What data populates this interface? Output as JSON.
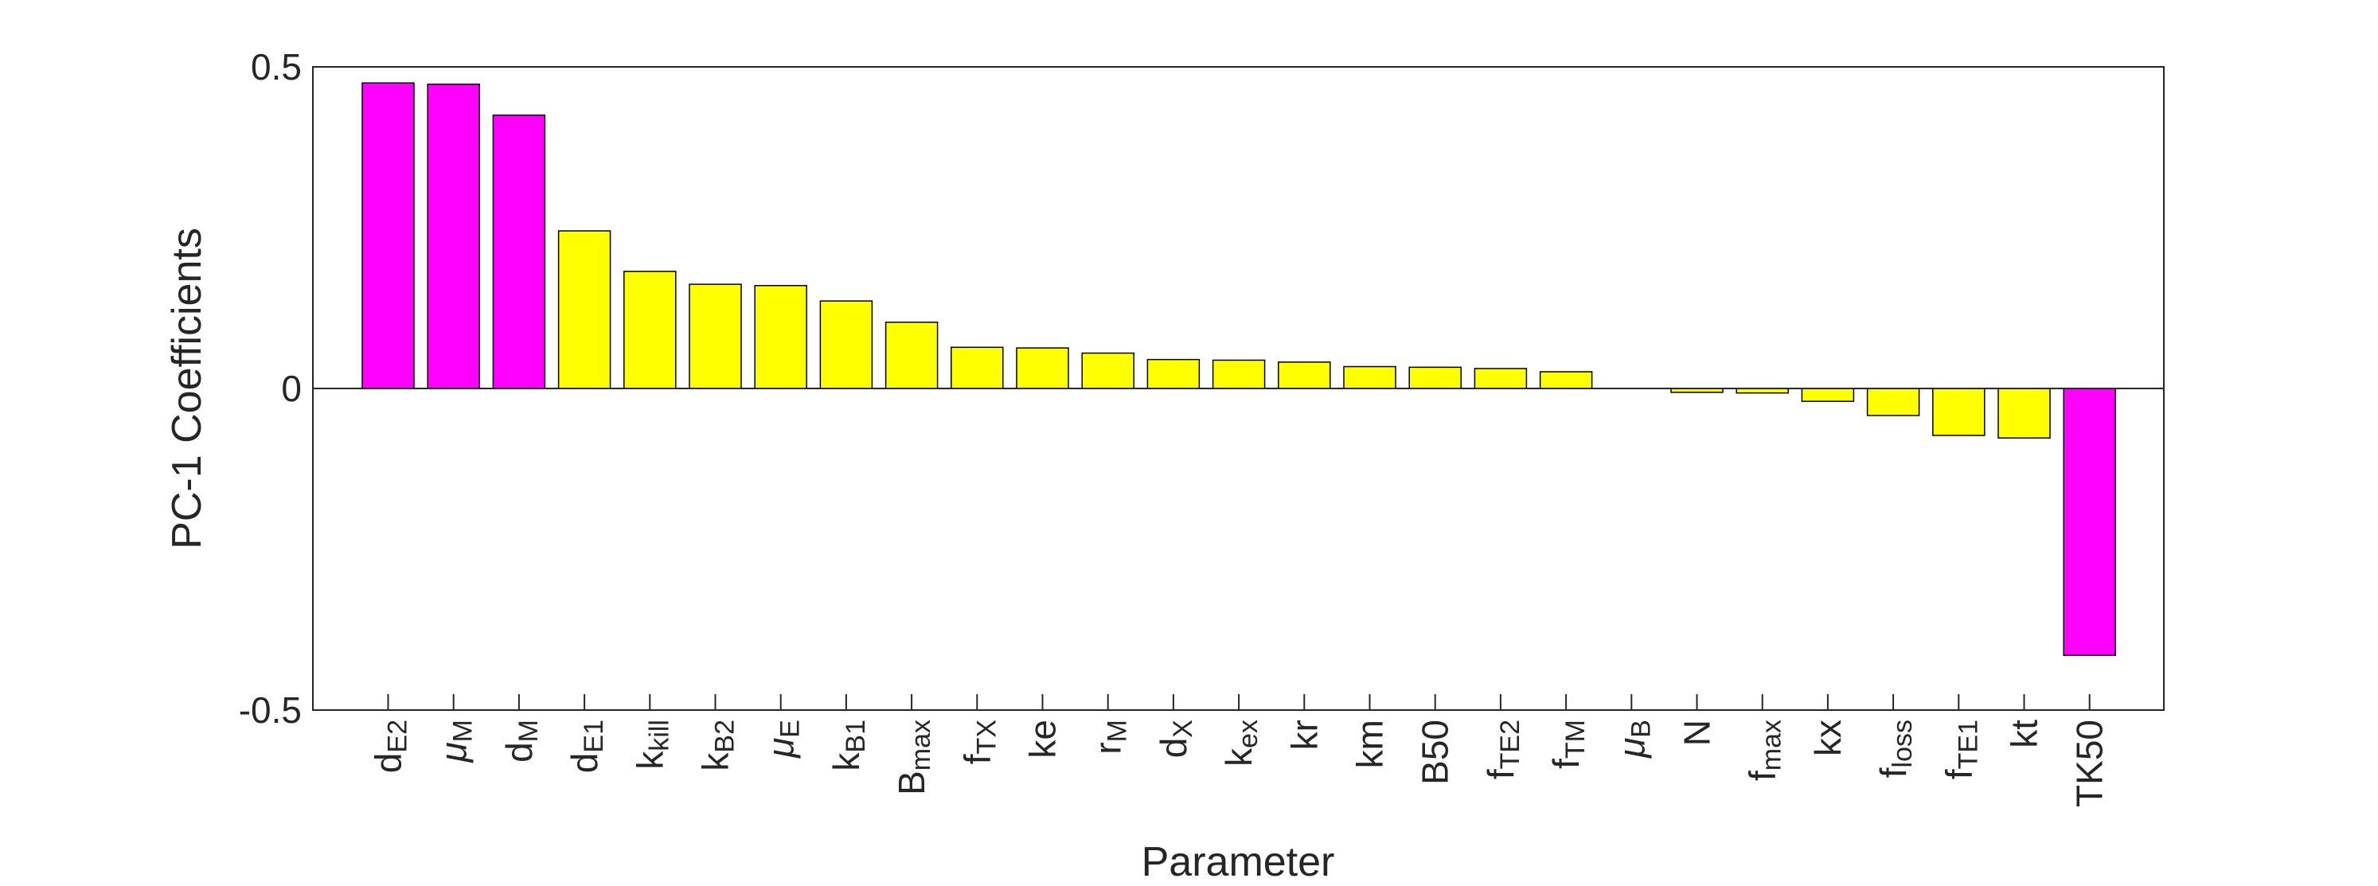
{
  "chart_data": {
    "type": "bar",
    "title": "",
    "xlabel": "Parameter",
    "ylabel": "PC-1 Coefficients",
    "ylim": [
      -0.5,
      0.5
    ],
    "yticks": [
      {
        "value": 0.5,
        "label": "0.5"
      },
      {
        "value": 0,
        "label": "0"
      },
      {
        "value": -0.5,
        "label": "-0.5"
      }
    ],
    "categories": [
      {
        "base": "d",
        "sub": "E2",
        "italic": false
      },
      {
        "base": "μ",
        "sub": "M",
        "italic": true
      },
      {
        "base": "d",
        "sub": "M",
        "italic": false
      },
      {
        "base": "d",
        "sub": "E1",
        "italic": false
      },
      {
        "base": "k",
        "sub": "kill",
        "italic": false
      },
      {
        "base": "k",
        "sub": "B2",
        "italic": false
      },
      {
        "base": "μ",
        "sub": "E",
        "italic": true
      },
      {
        "base": "k",
        "sub": "B1",
        "italic": false
      },
      {
        "base": "B",
        "sub": "max",
        "italic": false
      },
      {
        "base": "f",
        "sub": "TX",
        "italic": false
      },
      {
        "base": "ke",
        "sub": "",
        "italic": false
      },
      {
        "base": "r",
        "sub": "M",
        "italic": false
      },
      {
        "base": "d",
        "sub": "X",
        "italic": false
      },
      {
        "base": "k",
        "sub": "ex",
        "italic": false
      },
      {
        "base": "kr",
        "sub": "",
        "italic": false
      },
      {
        "base": "km",
        "sub": "",
        "italic": false
      },
      {
        "base": "B50",
        "sub": "",
        "italic": false
      },
      {
        "base": "f",
        "sub": "TE2",
        "italic": false
      },
      {
        "base": "f",
        "sub": "TM",
        "italic": false
      },
      {
        "base": "μ",
        "sub": "B",
        "italic": true
      },
      {
        "base": "N",
        "sub": "",
        "italic": false
      },
      {
        "base": "f",
        "sub": "max",
        "italic": false
      },
      {
        "base": "kx",
        "sub": "",
        "italic": false
      },
      {
        "base": "f",
        "sub": "loss",
        "italic": false
      },
      {
        "base": "f",
        "sub": "TE1",
        "italic": false
      },
      {
        "base": "kt",
        "sub": "",
        "italic": false
      },
      {
        "base": "TK50",
        "sub": "",
        "italic": false
      }
    ],
    "values": [
      0.475,
      0.473,
      0.425,
      0.245,
      0.182,
      0.162,
      0.16,
      0.136,
      0.103,
      0.064,
      0.063,
      0.055,
      0.045,
      0.044,
      0.041,
      0.034,
      0.033,
      0.031,
      0.026,
      0.0,
      -0.006,
      -0.007,
      -0.02,
      -0.042,
      -0.073,
      -0.077,
      -0.415
    ],
    "colors": [
      "#ff00ff",
      "#ff00ff",
      "#ff00ff",
      "#ffff00",
      "#ffff00",
      "#ffff00",
      "#ffff00",
      "#ffff00",
      "#ffff00",
      "#ffff00",
      "#ffff00",
      "#ffff00",
      "#ffff00",
      "#ffff00",
      "#ffff00",
      "#ffff00",
      "#ffff00",
      "#ffff00",
      "#ffff00",
      "#ffff00",
      "#ffff00",
      "#ffff00",
      "#ffff00",
      "#ffff00",
      "#ffff00",
      "#ffff00",
      "#ff00ff"
    ],
    "highlight_color": "#ff00ff",
    "default_color": "#ffff00",
    "grid": false,
    "legend": "none"
  }
}
